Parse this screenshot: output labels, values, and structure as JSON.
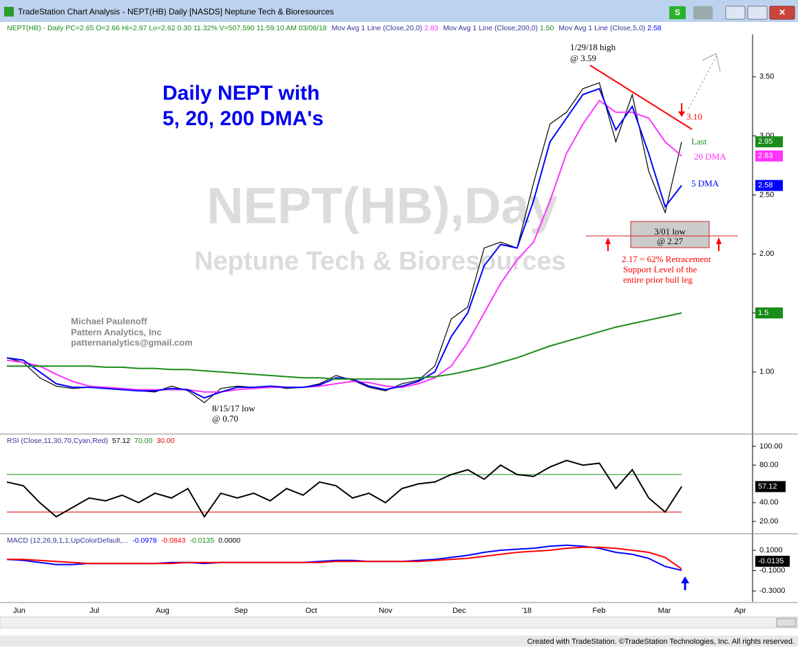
{
  "window": {
    "title": "TradeStation Chart Analysis - NEPT(HB) Daily [NASDS] Neptune Tech & Bioresources",
    "button": "S"
  },
  "status": [
    "NEPT(HB) - Daily",
    "PC=2.65",
    "O=2.66",
    "Hi=2.97",
    "Lo=2.62",
    "0.30",
    "11.32%",
    "V=507,590",
    "11:59:10 AM",
    "03/08/18",
    "Mov Avg 1 Line (Close,20,0)",
    "2.83",
    "Mov Avg 1 Line (Close,200,0)",
    "1.50",
    "Mov Avg 1 Line (Close,5,0)",
    "2.58"
  ],
  "annotations": {
    "headline": [
      "Daily NEPT with",
      "5, 20, 200 DMA's"
    ],
    "watermark": [
      "NEPT(HB),Day",
      "Neptune Tech & Bioresources"
    ],
    "author": [
      "Michael Paulenoff",
      "Pattern Analytics, Inc",
      "patternanalytics@gmail.com"
    ],
    "high": [
      "1/29/18 high",
      "@ 3.59"
    ],
    "target": "3.10",
    "last": "Last",
    "dma20": "20 DMA",
    "dma5": "5 DMA",
    "low": [
      "3/01 low",
      "@ 2.27"
    ],
    "retracement": [
      "2.17 = 62% Retracement",
      "Support Level of the",
      "entire prior bull leg"
    ],
    "aug_low": [
      "8/15/17 low",
      "@ 0.70"
    ]
  },
  "xtick_labels": [
    "Jun",
    "Jul",
    "Aug",
    "Sep",
    "Oct",
    "Nov",
    "Dec",
    "'18",
    "Feb",
    "Mar",
    "Apr"
  ],
  "chart_data": [
    {
      "type": "line",
      "ylim": [
        0.48,
        3.86
      ],
      "yticks": [
        {
          "value": 1,
          "label": "1.00"
        },
        {
          "value": 1.5,
          "label": "1.50"
        },
        {
          "value": 2,
          "label": "2.00"
        },
        {
          "value": 2.5,
          "label": "2.50"
        },
        {
          "value": 3,
          "label": "3.00"
        },
        {
          "value": 3.5,
          "label": "3.50"
        }
      ],
      "series": [
        {
          "name": "Close",
          "color": "#000000",
          "values": [
            1.12,
            1.08,
            0.95,
            0.88,
            0.86,
            0.87,
            0.86,
            0.85,
            0.84,
            0.83,
            0.88,
            0.84,
            0.74,
            0.86,
            0.88,
            0.87,
            0.88,
            0.86,
            0.87,
            0.9,
            0.97,
            0.93,
            0.87,
            0.84,
            0.9,
            0.93,
            1.05,
            1.45,
            1.55,
            2.05,
            2.1,
            2.05,
            2.6,
            3.1,
            3.2,
            3.4,
            3.45,
            2.95,
            3.35,
            2.7,
            2.35,
            2.95
          ]
        },
        {
          "name": "20 DMA",
          "color": "#ff33ff",
          "values": [
            1.1,
            1.08,
            1.05,
            0.98,
            0.92,
            0.88,
            0.87,
            0.86,
            0.85,
            0.85,
            0.85,
            0.85,
            0.83,
            0.83,
            0.85,
            0.86,
            0.87,
            0.87,
            0.87,
            0.88,
            0.9,
            0.92,
            0.91,
            0.88,
            0.87,
            0.9,
            0.95,
            1.05,
            1.25,
            1.5,
            1.75,
            1.95,
            2.1,
            2.45,
            2.85,
            3.1,
            3.3,
            3.2,
            3.2,
            3.15,
            2.95,
            2.83
          ]
        },
        {
          "name": "5 DMA",
          "color": "#0000ff",
          "values": [
            1.12,
            1.1,
            1.0,
            0.9,
            0.87,
            0.87,
            0.86,
            0.85,
            0.84,
            0.84,
            0.86,
            0.85,
            0.78,
            0.83,
            0.87,
            0.87,
            0.88,
            0.87,
            0.87,
            0.89,
            0.95,
            0.94,
            0.88,
            0.85,
            0.88,
            0.92,
            1.0,
            1.3,
            1.5,
            1.9,
            2.08,
            2.05,
            2.45,
            2.95,
            3.15,
            3.35,
            3.4,
            3.05,
            3.25,
            2.85,
            2.4,
            2.58
          ]
        },
        {
          "name": "200 DMA",
          "color": "#1a8c1a",
          "values": [
            1.05,
            1.05,
            1.05,
            1.05,
            1.05,
            1.05,
            1.04,
            1.04,
            1.03,
            1.03,
            1.02,
            1.02,
            1.01,
            1.0,
            0.99,
            0.98,
            0.97,
            0.96,
            0.95,
            0.95,
            0.94,
            0.94,
            0.94,
            0.94,
            0.94,
            0.95,
            0.96,
            0.98,
            1.01,
            1.04,
            1.08,
            1.12,
            1.17,
            1.22,
            1.26,
            1.3,
            1.34,
            1.38,
            1.41,
            1.44,
            1.47,
            1.5
          ]
        }
      ]
    },
    {
      "type": "line",
      "title": "RSI (Close,11,30,70,Cyan,Red)",
      "ylim": [
        7.6,
        112.4
      ],
      "yticks": [
        {
          "value": 20,
          "label": "20.00"
        },
        {
          "value": 40,
          "label": "40.00"
        },
        {
          "value": 80,
          "label": "80.00"
        },
        {
          "value": 100,
          "label": "100.00"
        }
      ],
      "levels": [
        {
          "value": 70,
          "label": "70.00"
        },
        {
          "value": 30,
          "label": "30.00"
        }
      ],
      "series": [
        {
          "name": "RSI",
          "color": "#000000",
          "values": [
            62,
            58,
            40,
            25,
            35,
            45,
            42,
            48,
            40,
            50,
            45,
            55,
            25,
            50,
            45,
            50,
            42,
            55,
            48,
            62,
            58,
            45,
            50,
            40,
            55,
            60,
            62,
            70,
            75,
            65,
            80,
            70,
            68,
            78,
            85,
            80,
            82,
            55,
            75,
            45,
            30,
            57.12
          ]
        }
      ]
    },
    {
      "type": "line",
      "title": "MACD (12,26,9,1,1,UpColorDefault,...",
      "extra": [
        "-0.0135",
        "0.0000"
      ],
      "ylim": [
        -0.408,
        0.256
      ],
      "yticks": [
        {
          "value": -0.3,
          "label": "-0.3000"
        },
        {
          "value": -0.1,
          "label": "-0.1000"
        },
        {
          "value": 0.1,
          "label": "0.1000"
        }
      ],
      "series": [
        {
          "name": "MACD",
          "color": "#0000ff",
          "values": [
            0.01,
            0.0,
            -0.02,
            -0.04,
            -0.04,
            -0.03,
            -0.03,
            -0.03,
            -0.03,
            -0.03,
            -0.02,
            -0.02,
            -0.03,
            -0.02,
            -0.02,
            -0.02,
            -0.02,
            -0.02,
            -0.02,
            -0.01,
            0.0,
            0.0,
            -0.01,
            -0.01,
            -0.01,
            0.0,
            0.01,
            0.03,
            0.05,
            0.08,
            0.1,
            0.11,
            0.12,
            0.14,
            0.15,
            0.14,
            0.12,
            0.08,
            0.06,
            0.02,
            -0.06,
            -0.0978
          ]
        },
        {
          "name": "Signal",
          "color": "#ff0000",
          "values": [
            0.01,
            0.01,
            0.0,
            -0.01,
            -0.02,
            -0.03,
            -0.03,
            -0.03,
            -0.03,
            -0.03,
            -0.03,
            -0.02,
            -0.02,
            -0.02,
            -0.02,
            -0.02,
            -0.02,
            -0.02,
            -0.02,
            -0.02,
            -0.01,
            -0.01,
            -0.01,
            -0.01,
            -0.01,
            -0.01,
            0.0,
            0.01,
            0.02,
            0.04,
            0.06,
            0.08,
            0.09,
            0.1,
            0.12,
            0.13,
            0.13,
            0.12,
            0.1,
            0.08,
            0.03,
            -0.0843
          ]
        }
      ]
    }
  ],
  "footer": "Created with TradeStation. ©TradeStation Technologies, Inc. All rights reserved."
}
